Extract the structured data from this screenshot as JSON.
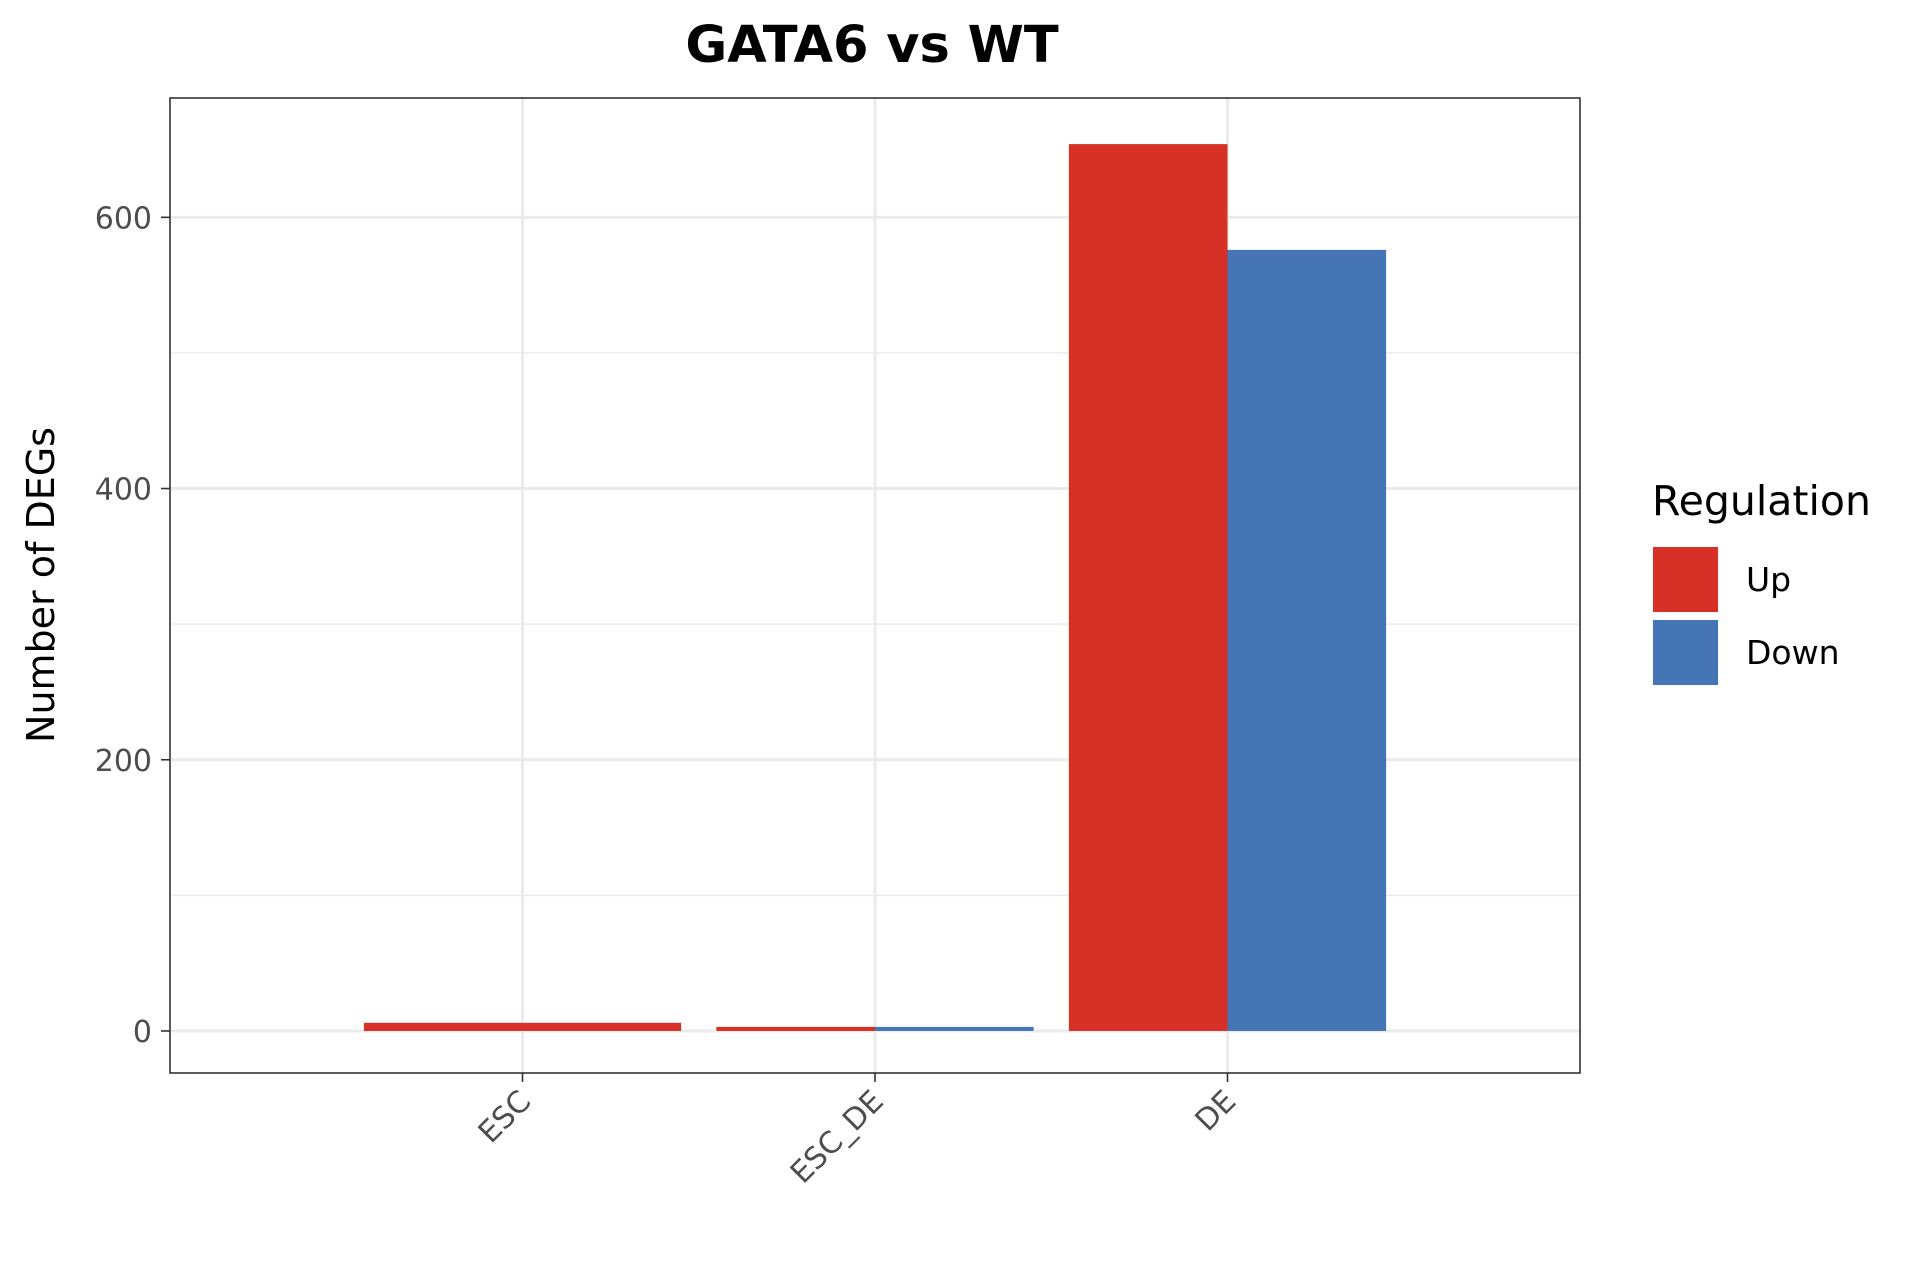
{
  "chart_data": {
    "type": "bar",
    "title": "GATA6 vs WT",
    "xlabel": "",
    "ylabel": "Number of DEGs",
    "categories": [
      "ESC",
      "ESC_DE",
      "DE"
    ],
    "series": [
      {
        "name": "Up",
        "color": "#d73027",
        "values": [
          6,
          3,
          654
        ]
      },
      {
        "name": "Down",
        "color": "#4575b4",
        "values": [
          0,
          3,
          576
        ]
      }
    ],
    "ylim": [
      -31,
      688
    ],
    "yticks": [
      0,
      200,
      400,
      600
    ],
    "ytick_labels": [
      "0",
      "200",
      "400",
      "600"
    ],
    "grid": true,
    "legend": {
      "title": "Regulation",
      "position": "right",
      "entries": [
        "Up",
        "Down"
      ]
    }
  }
}
